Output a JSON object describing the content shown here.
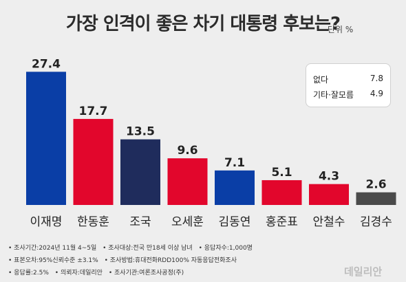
{
  "title": "가장 인격이 좋은 차기 대통령 후보는?",
  "unit": "단위 %",
  "colors": {
    "blue": "#0a3ea6",
    "red": "#e2062c",
    "navy": "#1f2c5c",
    "gray": "#4a4a4a"
  },
  "chart_data": {
    "type": "bar",
    "title": "가장 인격이 좋은 차기 대통령 후보는?",
    "xlabel": "",
    "ylabel": "",
    "ylim": [
      0,
      30
    ],
    "grid": false,
    "categories": [
      "이재명",
      "한동훈",
      "조국",
      "오세훈",
      "김동연",
      "홍준표",
      "안철수",
      "김경수"
    ],
    "values": [
      27.4,
      17.7,
      13.5,
      9.6,
      7.1,
      5.1,
      4.3,
      2.6
    ],
    "bar_colors": [
      "#0a3ea6",
      "#e2062c",
      "#1f2c5c",
      "#e2062c",
      "#0a3ea6",
      "#e2062c",
      "#e2062c",
      "#4a4a4a"
    ],
    "labels": [
      "27.4",
      "17.7",
      "13.5",
      "9.6",
      "7.1",
      "5.1",
      "4.3",
      "2.6"
    ],
    "extra": [
      {
        "label": "없다",
        "value": "7.8"
      },
      {
        "label": "기타·잘모름",
        "value": "4.9"
      }
    ]
  },
  "footer": {
    "line1": [
      "• 조사기간:2024년 11월 4~5일",
      "• 조사대상:전국 만18세 이상 남녀",
      "• 응답자수:1,000명"
    ],
    "line2": [
      "• 표본오차:95%신뢰수준 ±3.1%",
      "• 조사방법:휴대전화RDD100% 자동응답전화조사"
    ],
    "line3": [
      "• 응답률:2.5%",
      "• 의뢰자:데일리안",
      "• 조사기관:여론조사공정(주)"
    ]
  },
  "brand": "데일리안"
}
